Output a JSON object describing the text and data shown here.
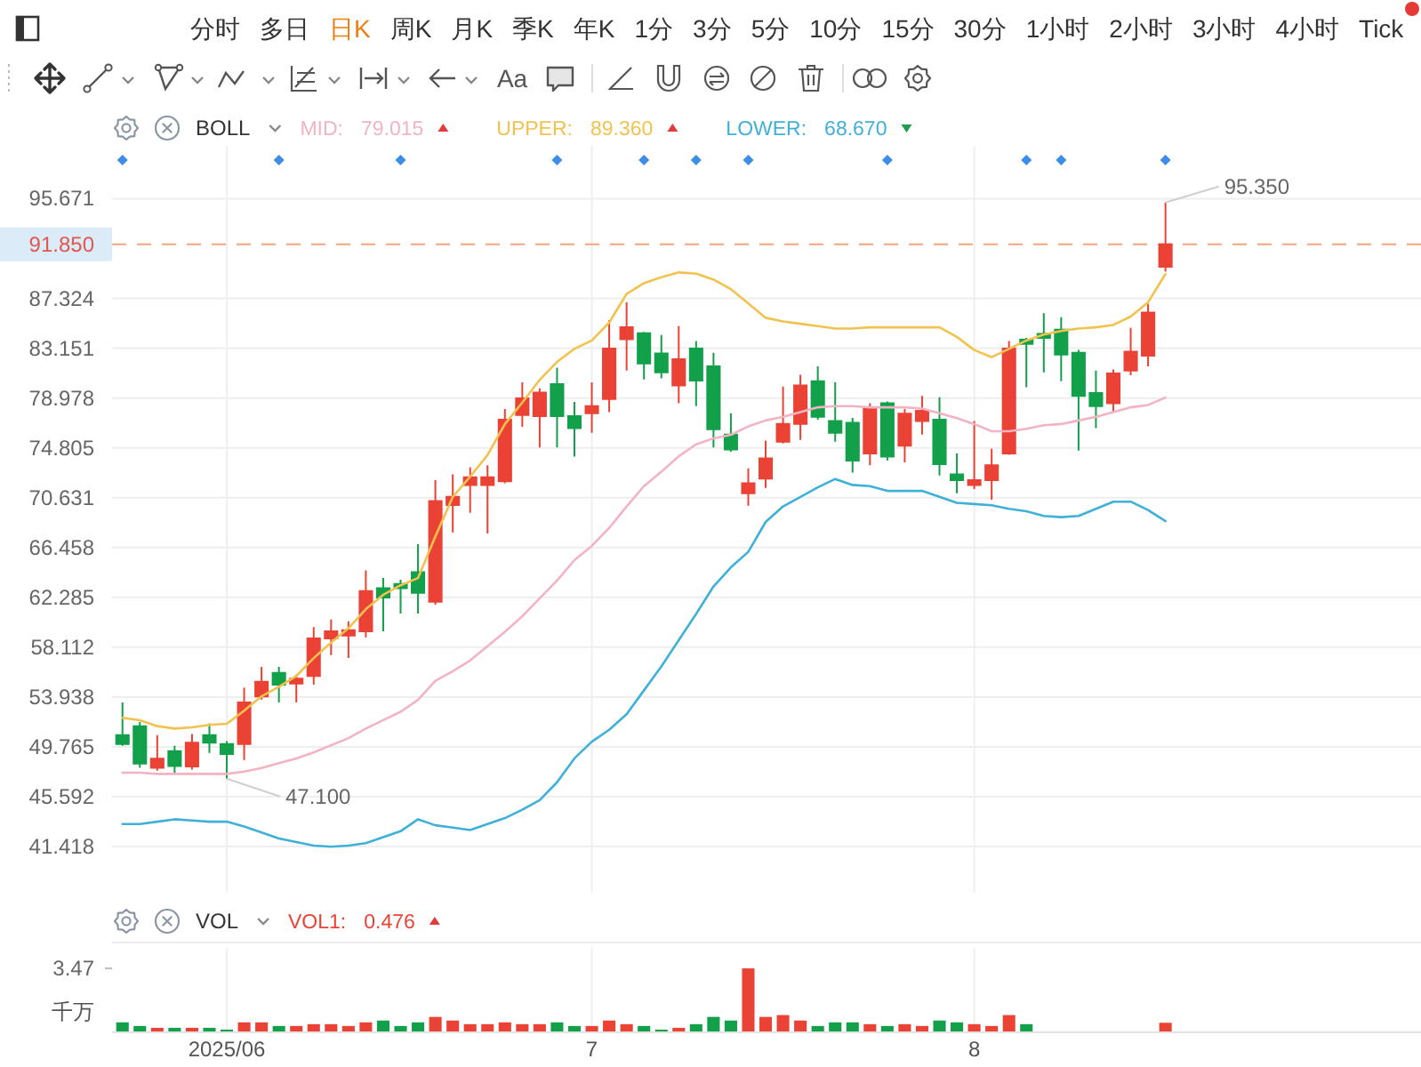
{
  "chart_data": [
    {
      "type": "candlestick",
      "legend_title": "BOLL",
      "legend": "top left",
      "tick_labels": "y",
      "grid": true,
      "categories": [
        null,
        null,
        null,
        null,
        null,
        null,
        "2025/06",
        null,
        null,
        null,
        null,
        null,
        null,
        null,
        null,
        null,
        null,
        null,
        null,
        null,
        null,
        null,
        null,
        null,
        null,
        null,
        null,
        "7",
        null,
        null,
        null,
        null,
        null,
        null,
        null,
        null,
        null,
        null,
        null,
        null,
        null,
        null,
        null,
        null,
        null,
        null,
        null,
        null,
        null,
        "8",
        null,
        null,
        null,
        null,
        null,
        null,
        null,
        null,
        null,
        null,
        null
      ],
      "ohlc": [
        [
          50.75,
          53.48,
          49.86,
          50.01
        ],
        [
          51.5,
          51.84,
          48.02,
          48.37
        ],
        [
          48.02,
          50.75,
          47.77,
          48.77
        ],
        [
          49.41,
          49.86,
          47.52,
          48.17
        ],
        [
          48.12,
          50.85,
          47.87,
          50.11
        ],
        [
          50.75,
          51.74,
          49.26,
          50.11
        ],
        [
          50.01,
          50.25,
          47.1,
          49.16
        ],
        [
          50.01,
          54.72,
          48.67,
          53.48
        ],
        [
          53.98,
          56.46,
          53.73,
          55.22
        ],
        [
          55.96,
          56.46,
          53.48,
          54.97
        ],
        [
          55.07,
          55.81,
          53.48,
          55.47
        ],
        [
          55.71,
          59.79,
          54.97,
          58.84
        ],
        [
          58.84,
          60.43,
          57.45,
          59.44
        ],
        [
          59.09,
          60.28,
          57.2,
          59.54
        ],
        [
          59.44,
          64.55,
          58.94,
          62.81
        ],
        [
          63.06,
          63.91,
          59.44,
          62.27
        ],
        [
          63.41,
          63.76,
          60.93,
          63.06
        ],
        [
          64.4,
          66.74,
          60.93,
          62.66
        ],
        [
          61.92,
          72.1,
          61.67,
          70.36
        ],
        [
          70.01,
          72.59,
          67.73,
          70.71
        ],
        [
          71.7,
          73.19,
          69.37,
          72.34
        ],
        [
          71.7,
          73.34,
          67.63,
          72.34
        ],
        [
          72.0,
          78.05,
          71.85,
          77.16
        ],
        [
          77.56,
          80.29,
          76.56,
          78.95
        ],
        [
          77.46,
          79.79,
          74.83,
          79.44
        ],
        [
          80.14,
          81.53,
          74.83,
          77.46
        ],
        [
          77.46,
          78.65,
          74.08,
          76.46
        ],
        [
          77.71,
          80.29,
          76.07,
          78.3
        ],
        [
          78.9,
          85.5,
          77.8,
          83.12
        ],
        [
          83.91,
          86.99,
          81.28,
          84.9
        ],
        [
          84.41,
          84.51,
          80.53,
          81.88
        ],
        [
          82.72,
          84.26,
          80.63,
          81.13
        ],
        [
          80.04,
          85.0,
          78.55,
          82.22
        ],
        [
          83.12,
          83.76,
          78.3,
          80.44
        ],
        [
          81.63,
          82.77,
          74.83,
          76.37
        ],
        [
          75.92,
          77.71,
          74.48,
          74.68
        ],
        [
          71.0,
          73.09,
          69.96,
          71.85
        ],
        [
          72.24,
          75.42,
          71.45,
          73.93
        ],
        [
          75.32,
          79.94,
          75.17,
          76.81
        ],
        [
          76.81,
          80.93,
          75.47,
          80.04
        ],
        [
          80.39,
          81.63,
          77.16,
          77.41
        ],
        [
          77.06,
          80.29,
          75.32,
          76.07
        ],
        [
          76.91,
          77.31,
          72.74,
          73.73
        ],
        [
          74.33,
          78.55,
          73.34,
          78.05
        ],
        [
          78.55,
          78.7,
          73.73,
          74.08
        ],
        [
          74.98,
          78.05,
          73.59,
          77.66
        ],
        [
          77.06,
          79.15,
          75.92,
          77.9
        ],
        [
          77.16,
          79.05,
          72.49,
          73.44
        ],
        [
          72.59,
          74.33,
          71.0,
          72.1
        ],
        [
          71.7,
          77.06,
          71.35,
          72.1
        ],
        [
          72.1,
          74.73,
          70.46,
          73.34
        ],
        [
          74.33,
          83.76,
          74.23,
          83.12
        ],
        [
          83.86,
          84.01,
          79.89,
          83.51
        ],
        [
          84.36,
          86.09,
          81.13,
          84.01
        ],
        [
          84.7,
          85.75,
          80.39,
          82.62
        ],
        [
          82.77,
          83.02,
          74.58,
          79.15
        ],
        [
          79.39,
          81.28,
          76.46,
          78.3
        ],
        [
          78.55,
          81.38,
          77.8,
          81.03
        ],
        [
          81.28,
          84.85,
          80.88,
          82.87
        ],
        [
          82.52,
          86.89,
          81.63,
          86.14
        ],
        [
          89.97,
          95.35,
          89.57,
          91.85
        ]
      ],
      "value_labels": [
        null,
        null,
        null,
        null,
        null,
        null,
        "47.100",
        null,
        null,
        null,
        null,
        null,
        null,
        null,
        null,
        null,
        null,
        null,
        null,
        null,
        null,
        null,
        null,
        null,
        null,
        null,
        null,
        null,
        null,
        null,
        null,
        null,
        null,
        null,
        null,
        null,
        null,
        null,
        null,
        null,
        null,
        null,
        null,
        null,
        null,
        null,
        null,
        null,
        null,
        null,
        null,
        null,
        null,
        null,
        null,
        null,
        null,
        null,
        null,
        null,
        "95.350"
      ],
      "colors": [
        "#12a04a",
        "#12a04a",
        "#eb4236",
        "#12a04a",
        "#eb4236",
        "#12a04a",
        "#12a04a",
        "#eb4236",
        "#eb4236",
        "#12a04a",
        "#eb4236",
        "#eb4236",
        "#eb4236",
        "#eb4236",
        "#eb4236",
        "#12a04a",
        "#12a04a",
        "#12a04a",
        "#eb4236",
        "#eb4236",
        "#eb4236",
        "#eb4236",
        "#eb4236",
        "#eb4236",
        "#eb4236",
        "#12a04a",
        "#12a04a",
        "#eb4236",
        "#eb4236",
        "#eb4236",
        "#12a04a",
        "#12a04a",
        "#eb4236",
        "#12a04a",
        "#12a04a",
        "#12a04a",
        "#eb4236",
        "#eb4236",
        "#eb4236",
        "#eb4236",
        "#12a04a",
        "#12a04a",
        "#12a04a",
        "#eb4236",
        "#12a04a",
        "#eb4236",
        "#eb4236",
        "#12a04a",
        "#12a04a",
        "#eb4236",
        "#eb4236",
        "#eb4236",
        "#12a04a",
        "#12a04a",
        "#12a04a",
        "#12a04a",
        "#12a04a",
        "#eb4236",
        "#eb4236",
        "#eb4236",
        "#eb4236"
      ],
      "series": [
        {
          "type": "line",
          "name": "MID:",
          "color": "#f2b3c3",
          "values": [
            47.6,
            47.6,
            47.5,
            47.5,
            47.5,
            47.5,
            47.5,
            47.7,
            48.0,
            48.4,
            48.8,
            49.3,
            49.9,
            50.5,
            51.3,
            52.0,
            52.7,
            53.7,
            55.3,
            56.1,
            57.0,
            58.2,
            59.4,
            60.7,
            62.2,
            63.7,
            65.4,
            66.6,
            68.1,
            69.9,
            71.6,
            72.8,
            74.1,
            75.1,
            75.6,
            75.9,
            76.6,
            77.1,
            77.4,
            77.8,
            78.2,
            78.3,
            78.3,
            78.2,
            78.2,
            78.2,
            78.1,
            77.7,
            77.3,
            76.8,
            76.2,
            76.2,
            76.4,
            76.7,
            76.8,
            77.1,
            77.4,
            77.8,
            78.2,
            78.4,
            79.015
          ]
        },
        {
          "type": "line",
          "name": "UPPER:",
          "color": "#f2c24e",
          "values": [
            52.2,
            52.0,
            51.5,
            51.3,
            51.4,
            51.6,
            51.7,
            52.8,
            54.0,
            54.8,
            55.7,
            57.2,
            58.5,
            59.7,
            61.3,
            62.5,
            63.3,
            63.9,
            67.4,
            70.7,
            72.4,
            74.2,
            76.8,
            78.6,
            80.5,
            82.0,
            83.1,
            83.8,
            85.3,
            87.7,
            88.6,
            89.1,
            89.5,
            89.4,
            88.9,
            88.1,
            86.9,
            85.7,
            85.4,
            85.2,
            85.0,
            84.8,
            84.8,
            84.9,
            84.9,
            84.9,
            84.9,
            84.9,
            84.1,
            83.0,
            82.4,
            83.1,
            83.8,
            84.3,
            84.6,
            84.8,
            84.9,
            85.1,
            85.8,
            87.0,
            89.36
          ]
        },
        {
          "type": "line",
          "name": "LOWER:",
          "color": "#3fb0d8",
          "values": [
            43.3,
            43.3,
            43.5,
            43.7,
            43.6,
            43.5,
            43.5,
            43.1,
            42.6,
            42.1,
            41.8,
            41.5,
            41.4,
            41.5,
            41.7,
            42.2,
            42.7,
            43.7,
            43.2,
            43.0,
            42.8,
            43.3,
            43.8,
            44.5,
            45.3,
            46.8,
            48.8,
            50.2,
            51.2,
            52.5,
            54.5,
            56.5,
            58.7,
            60.9,
            63.2,
            64.8,
            66.1,
            68.6,
            69.9,
            70.7,
            71.5,
            72.2,
            71.7,
            71.6,
            71.2,
            71.2,
            71.2,
            70.7,
            70.2,
            70.1,
            70.0,
            69.7,
            69.5,
            69.1,
            69.0,
            69.1,
            69.7,
            70.3,
            70.3,
            69.6,
            68.67
          ]
        },
        {
          "type": "scatter",
          "color": "#3b8de8",
          "marker": "diamond",
          "values": [
            98.9,
            null,
            null,
            null,
            null,
            null,
            null,
            null,
            null,
            98.9,
            null,
            null,
            null,
            null,
            null,
            null,
            98.9,
            null,
            null,
            null,
            null,
            null,
            null,
            null,
            null,
            98.9,
            null,
            null,
            null,
            null,
            98.9,
            null,
            null,
            98.9,
            null,
            null,
            98.9,
            null,
            null,
            null,
            null,
            null,
            null,
            null,
            98.9,
            null,
            null,
            null,
            null,
            null,
            null,
            null,
            98.9,
            null,
            98.9,
            null,
            null,
            null,
            null,
            null,
            98.9
          ]
        }
      ],
      "ylim": [
        37.55,
        100.1
      ],
      "yticks": [
        41.418,
        45.592,
        49.765,
        53.938,
        58.112,
        62.285,
        66.458,
        70.631,
        74.805,
        78.978,
        83.151,
        87.324,
        95.671
      ],
      "ref_lines": [
        {
          "axis": "y",
          "value": 91.85,
          "label": "91.850",
          "color": "#f5a47e",
          "line_style": "dashed"
        }
      ],
      "annotations": [
        "分时",
        "多日",
        "日K",
        "周K",
        "月K",
        "季K",
        "年K",
        "1分",
        "3分",
        "5分",
        "10分",
        "15分",
        "30分",
        "1小时",
        "2小时",
        "3小时",
        "4小时",
        "Tick",
        "Aa",
        "79.015",
        "89.360",
        "68.670"
      ]
    },
    {
      "type": "bar",
      "legend_title": "VOL",
      "legend": "top left",
      "grid": "x",
      "ylabel": "千万",
      "categories": [
        null,
        null,
        null,
        null,
        null,
        null,
        "2025/06",
        null,
        null,
        null,
        null,
        null,
        null,
        null,
        null,
        null,
        null,
        null,
        null,
        null,
        null,
        null,
        null,
        null,
        null,
        null,
        null,
        "7",
        null,
        null,
        null,
        null,
        null,
        null,
        null,
        null,
        null,
        null,
        null,
        null,
        null,
        null,
        null,
        null,
        null,
        null,
        null,
        null,
        null,
        "8",
        null,
        null,
        null,
        null,
        null,
        null,
        null,
        null,
        null,
        null,
        null
      ],
      "series": [
        {
          "name": "VOL1:",
          "color": "#eb4236",
          "colors": [
            "#12a04a",
            "#12a04a",
            "#eb4236",
            "#12a04a",
            "#eb4236",
            "#12a04a",
            "#12a04a",
            "#eb4236",
            "#eb4236",
            "#12a04a",
            "#eb4236",
            "#eb4236",
            "#eb4236",
            "#eb4236",
            "#eb4236",
            "#12a04a",
            "#12a04a",
            "#12a04a",
            "#eb4236",
            "#eb4236",
            "#eb4236",
            "#eb4236",
            "#eb4236",
            "#eb4236",
            "#eb4236",
            "#12a04a",
            "#12a04a",
            "#eb4236",
            "#eb4236",
            "#eb4236",
            "#12a04a",
            "#12a04a",
            "#eb4236",
            "#12a04a",
            "#12a04a",
            "#12a04a",
            "#eb4236",
            "#eb4236",
            "#eb4236",
            "#eb4236",
            "#12a04a",
            "#12a04a",
            "#12a04a",
            "#eb4236",
            "#12a04a",
            "#eb4236",
            "#eb4236",
            "#12a04a",
            "#12a04a",
            "#eb4236",
            "#eb4236",
            "#eb4236",
            "#12a04a",
            null,
            null,
            null,
            null,
            null,
            null,
            null,
            "#eb4236"
          ],
          "values": [
            0.5,
            0.3,
            0.2,
            0.2,
            0.2,
            0.2,
            0.1,
            0.5,
            0.5,
            0.3,
            0.3,
            0.4,
            0.4,
            0.3,
            0.5,
            0.6,
            0.3,
            0.5,
            0.8,
            0.6,
            0.4,
            0.4,
            0.5,
            0.4,
            0.4,
            0.5,
            0.3,
            0.3,
            0.6,
            0.4,
            0.3,
            0.1,
            0.2,
            0.4,
            0.8,
            0.6,
            3.47,
            0.8,
            0.9,
            0.6,
            0.3,
            0.5,
            0.5,
            0.4,
            0.3,
            0.4,
            0.3,
            0.6,
            0.5,
            0.4,
            0.3,
            0.9,
            0.4,
            null,
            null,
            null,
            null,
            null,
            null,
            null,
            0.476
          ]
        }
      ],
      "ylim": [
        0,
        4.6
      ],
      "yticks": [
        3.47
      ],
      "annotations": [
        "0.476"
      ]
    }
  ]
}
